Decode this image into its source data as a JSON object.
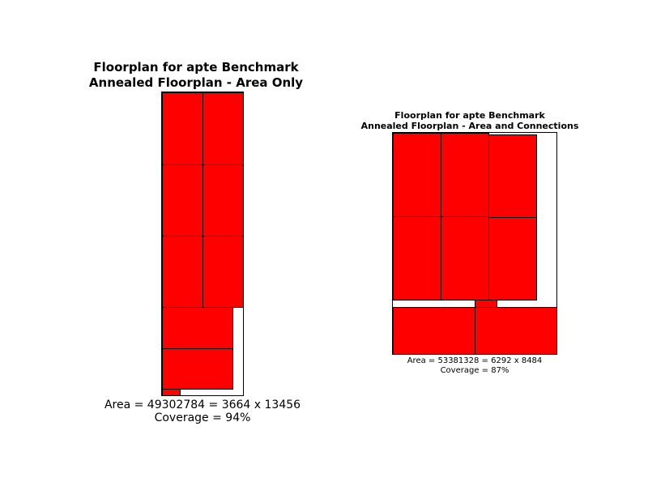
{
  "plot1": {
    "title_line1": "Floorplan for apte Benchmark",
    "title_line2": "Annealed Floorplan - Area Only",
    "area_text": "Area = 49302784 = 3664 x 13456",
    "coverage_text": "Coverage = 94%"
  },
  "plot2": {
    "title_line1": "Floorplan for apte Benchmark",
    "title_line2": "Annealed Floorplan - Area and Connections",
    "area_text": "Area = 53381328 = 6292 x 8484",
    "coverage_text": "Coverage = 87%"
  },
  "colors": {
    "block_fill": "#ff0000",
    "outline": "#000000",
    "background": "#ffffff"
  }
}
